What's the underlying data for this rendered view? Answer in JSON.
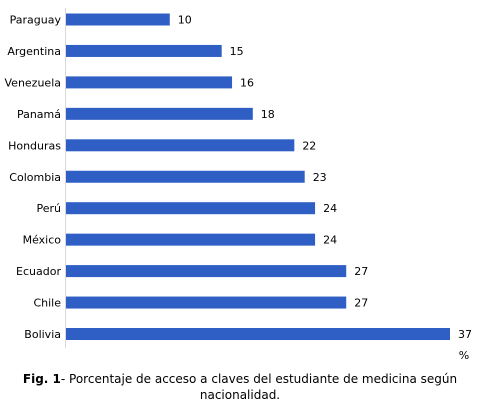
{
  "chart_data": {
    "type": "bar",
    "orientation": "horizontal",
    "categories": [
      "Paraguay",
      "Argentina",
      "Venezuela",
      "Panamá",
      "Honduras",
      "Colombia",
      "Perú",
      "México",
      "Ecuador",
      "Chile",
      "Bolivia"
    ],
    "values": [
      10,
      15,
      16,
      18,
      22,
      23,
      24,
      24,
      27,
      27,
      37
    ],
    "data_labels": [
      "10",
      "15",
      "16",
      "18",
      "22",
      "23",
      "24",
      "24",
      "27",
      "27",
      "37"
    ],
    "xlim": [
      0,
      37
    ],
    "unit": "%",
    "bar_color": "#2f5fc4",
    "grid": false,
    "legend": "none"
  },
  "caption": {
    "prefix": "Fig. 1",
    "text": "- Porcentaje de acceso a claves del estudiante de medicina según nacionalidad."
  }
}
